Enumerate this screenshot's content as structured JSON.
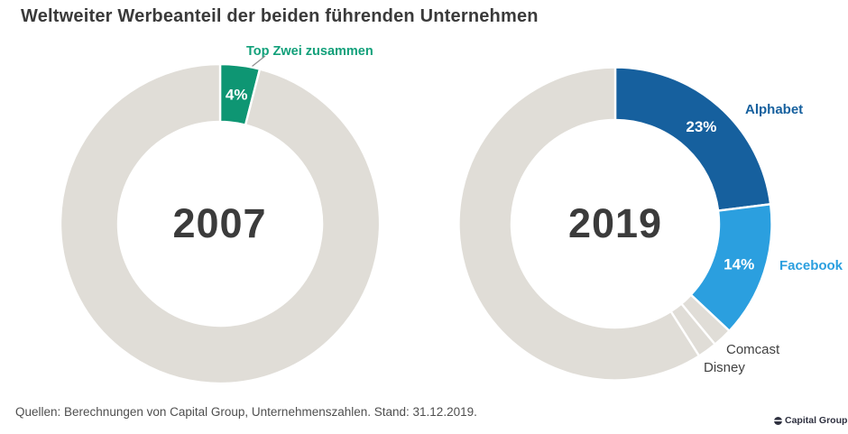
{
  "title": "Weltweiter Werbeanteil der beiden führenden Unternehmen",
  "source_note": "Quellen: Berechnungen von Capital Group, Unternehmenszahlen. Stand: 31.12.2019.",
  "logo_text": "Capital Group",
  "colors": {
    "green": "#0E9673",
    "green_label": "#12A07A",
    "dark_blue": "#16609E",
    "light_blue": "#2B9FDF",
    "ring_gray": "#E0DDD7",
    "heading_text": "#3A3A3A",
    "source_text": "#4F4F4F"
  },
  "chart_data": [
    {
      "type": "pie",
      "subtype": "donut",
      "center_label": "2007",
      "callout_label": "Top Zwei zusammen",
      "unit": "percent of worldwide ad share",
      "slices": [
        {
          "name": "Top Zwei zusammen",
          "value": 4,
          "label": "4%",
          "color": "#0E9673"
        },
        {
          "name": "Rest",
          "value": 96,
          "label": "",
          "color": "#E0DDD7"
        }
      ]
    },
    {
      "type": "pie",
      "subtype": "donut",
      "center_label": "2019",
      "unit": "percent of worldwide ad share",
      "slices": [
        {
          "name": "Alphabet",
          "value": 23,
          "label": "23%",
          "color": "#16609E"
        },
        {
          "name": "Facebook",
          "value": 14,
          "label": "14%",
          "color": "#2B9FDF"
        },
        {
          "name": "Comcast",
          "value": 2,
          "label": "",
          "color": "#E0DDD7"
        },
        {
          "name": "Disney",
          "value": 2,
          "label": "",
          "color": "#E0DDD7"
        },
        {
          "name": "Rest",
          "value": 59,
          "label": "",
          "color": "#E0DDD7"
        }
      ]
    }
  ]
}
